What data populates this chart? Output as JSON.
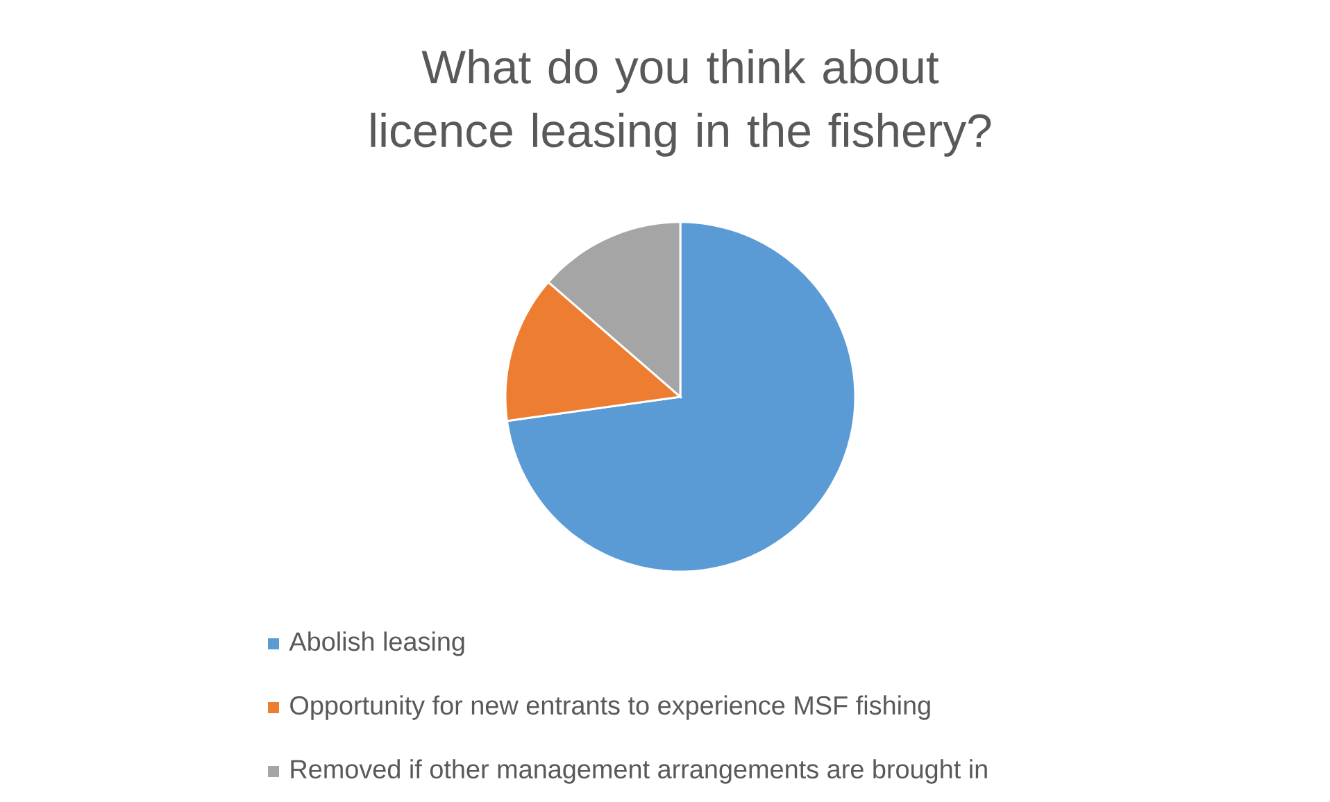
{
  "chart_data": {
    "type": "pie",
    "title": "What do you think about licence leasing in the fishery?",
    "categories": [
      "Abolish leasing",
      "Opportunity for new entrants to experience MSF fishing",
      "Removed if other management arrangements are brought in"
    ],
    "values": [
      72.8,
      13.6,
      13.6
    ],
    "colors": [
      "#5b9bd5",
      "#ed7d31",
      "#a5a5a5"
    ],
    "legend": "bottom"
  }
}
